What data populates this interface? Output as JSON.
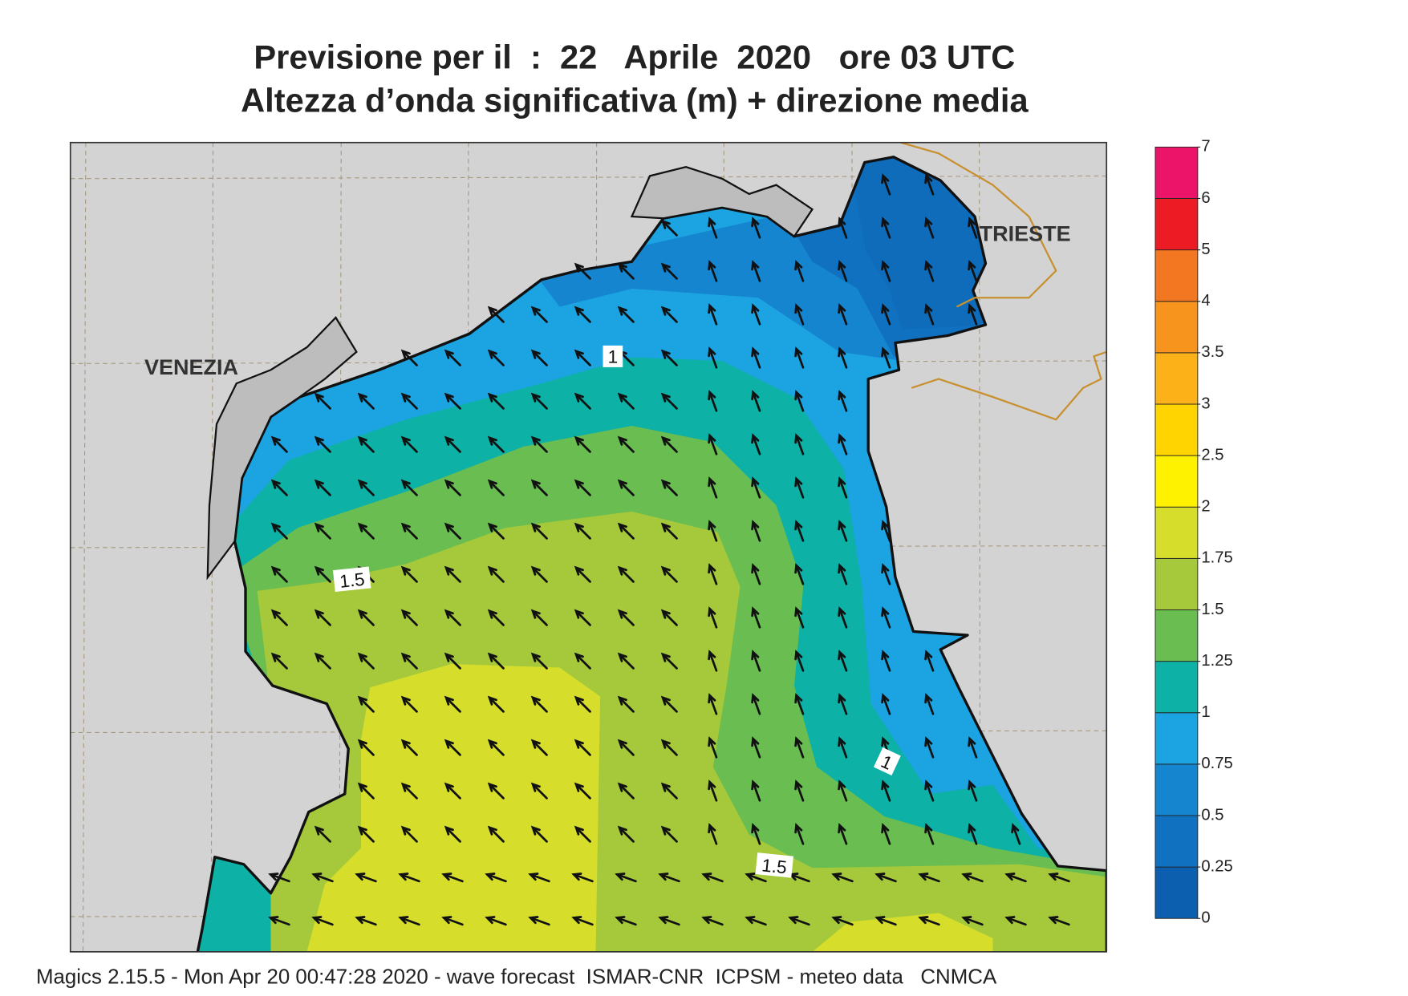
{
  "title": [
    "Previsione per il  :  22   Aprile  2020   ore 03 UTC",
    "Altezza d’onda significativa (m) + direzione media"
  ],
  "map_labels": {
    "venezia": "VENEZIA",
    "trieste": "TRIESTE"
  },
  "contour_labels": [
    "1",
    "1.5",
    "1",
    "1.5"
  ],
  "colorbar": {
    "ticks": [
      0,
      0.25,
      0.5,
      0.75,
      1,
      1.25,
      1.5,
      1.75,
      2,
      2.5,
      3,
      3.5,
      4,
      5,
      6,
      7
    ],
    "colors": [
      "#0b5fae",
      "#0f71bf",
      "#1585cf",
      "#1ca3e2",
      "#0db1a5",
      "#6abd51",
      "#a5c93b",
      "#d6de2b",
      "#fff200",
      "#ffd400",
      "#fbb117",
      "#f7941e",
      "#f37721",
      "#ed1c24",
      "#ec1468"
    ]
  },
  "footer": "Magics 2.15.5 - Mon Apr 20 00:47:28 2020 - wave forecast  ISMAR-CNR  ICPSM - meteo data   CNMCA"
}
